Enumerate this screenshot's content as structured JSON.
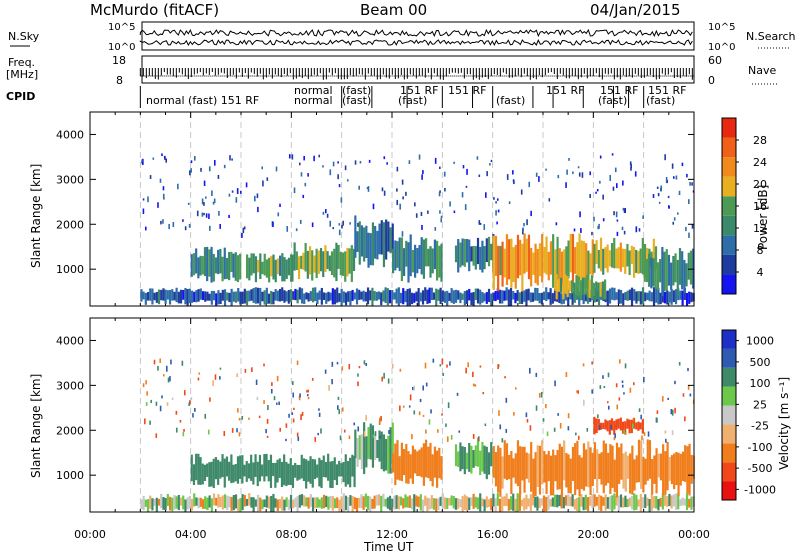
{
  "header": {
    "station": "McMurdo (fitACF)",
    "beam": "Beam 00",
    "date": "04/Jan/2015"
  },
  "status_panels": {
    "nsky_label": "N.Sky",
    "nsky_ticks": [
      "10^5",
      "10^0"
    ],
    "nsearch_label": "N.Search",
    "nsearch_ticks": [
      "10^5",
      "10^0"
    ],
    "freq_label_1": "Freq.",
    "freq_label_2": "[MHz]",
    "freq_ticks": [
      "18",
      "8"
    ],
    "nave_label": "Nave",
    "nave_ticks": [
      "60",
      "0"
    ],
    "cpid_label": "CPID",
    "cpid_text": [
      "normal (fast) 151 RF",
      "normal",
      "normal",
      "(fast)",
      "(fast)",
      "(fast)",
      "151 RF",
      "151 RF",
      "(fast)",
      "151 RF",
      "(fast)",
      "151 RF",
      "(fast)",
      "151 RF"
    ]
  },
  "colors": {
    "power": [
      "#1414f0",
      "#1e3ca0",
      "#2e6ea8",
      "#3a8a6a",
      "#4c9a56",
      "#e8b020",
      "#f08a1c",
      "#f06018",
      "#e82810"
    ],
    "velocity": [
      "#e81010",
      "#f04818",
      "#f07e1c",
      "#f0b070",
      "#c8c8c8",
      "#6cc84a",
      "#3e8a68",
      "#2e5ab0",
      "#1c30c8"
    ]
  },
  "chart_data": [
    {
      "type": "heatmap",
      "title": "",
      "xlabel": "",
      "ylabel": "Slant Range [km]",
      "xlim": [
        0,
        24
      ],
      "ylim": [
        180,
        4500
      ],
      "x_ticks": [],
      "y_ticks": [
        "1000",
        "2000",
        "3000",
        "4000"
      ],
      "colorbar": {
        "label": "Power [dB]",
        "ticks": [
          "4",
          "8",
          "12",
          "16",
          "20",
          "24",
          "28"
        ],
        "range": [
          0,
          32
        ]
      },
      "echo_regions": [
        {
          "t0": 2.0,
          "t1": 24.0,
          "r0": 180,
          "r1": 600,
          "level": 8
        },
        {
          "t0": 4.0,
          "t1": 6.0,
          "r0": 700,
          "r1": 1500,
          "level": 14
        },
        {
          "t0": 6.2,
          "t1": 8.0,
          "r0": 700,
          "r1": 1400,
          "level": 16
        },
        {
          "t0": 8.0,
          "t1": 10.5,
          "r0": 700,
          "r1": 1600,
          "level": 18
        },
        {
          "t0": 10.5,
          "t1": 12.0,
          "r0": 1000,
          "r1": 2200,
          "level": 10
        },
        {
          "t0": 12.0,
          "t1": 14.0,
          "r0": 700,
          "r1": 1800,
          "level": 14
        },
        {
          "t0": 14.5,
          "t1": 16.0,
          "r0": 900,
          "r1": 1800,
          "level": 12
        },
        {
          "t0": 16.0,
          "t1": 20.0,
          "r0": 500,
          "r1": 1800,
          "level": 24
        },
        {
          "t0": 18.5,
          "t1": 20.5,
          "r0": 300,
          "r1": 900,
          "level": 18
        },
        {
          "t0": 20.0,
          "t1": 22.5,
          "r0": 800,
          "r1": 1700,
          "level": 20
        },
        {
          "t0": 22.0,
          "t1": 24.0,
          "r0": 400,
          "r1": 1500,
          "level": 14
        }
      ]
    },
    {
      "type": "heatmap",
      "title": "",
      "xlabel": "Time UT",
      "ylabel": "Slant Range [km]",
      "xlim": [
        0,
        24
      ],
      "ylim": [
        180,
        4500
      ],
      "x_ticks": [
        "00:00",
        "04:00",
        "08:00",
        "12:00",
        "16:00",
        "20:00",
        "00:00"
      ],
      "y_ticks": [
        "1000",
        "2000",
        "3000",
        "4000"
      ],
      "colorbar": {
        "label": "Velocity [m s⁻¹]",
        "ticks": [
          "-1000",
          "-500",
          "-100",
          "-25",
          "25",
          "100",
          "500",
          "1000"
        ],
        "range": [
          -1200,
          1200
        ]
      },
      "echo_regions": [
        {
          "t0": 2.0,
          "t1": 24.0,
          "r0": 180,
          "r1": 600,
          "level": 0
        },
        {
          "t0": 4.0,
          "t1": 10.5,
          "r0": 700,
          "r1": 1500,
          "level": 300
        },
        {
          "t0": 10.5,
          "t1": 12.0,
          "r0": 1000,
          "r1": 2200,
          "level": 150
        },
        {
          "t0": 12.0,
          "t1": 14.0,
          "r0": 700,
          "r1": 1800,
          "level": -300
        },
        {
          "t0": 14.5,
          "t1": 16.0,
          "r0": 900,
          "r1": 1800,
          "level": 200
        },
        {
          "t0": 16.0,
          "t1": 24.0,
          "r0": 500,
          "r1": 1800,
          "level": -200
        },
        {
          "t0": 20.0,
          "t1": 22.0,
          "r0": 1900,
          "r1": 2300,
          "level": -600
        }
      ]
    }
  ]
}
